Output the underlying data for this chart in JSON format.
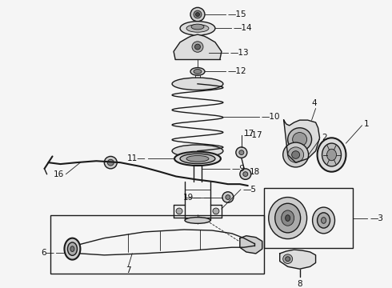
{
  "background_color": "#f5f5f5",
  "line_color": "#1a1a1a",
  "label_color": "#111111",
  "fig_width": 4.9,
  "fig_height": 3.6,
  "dpi": 100
}
